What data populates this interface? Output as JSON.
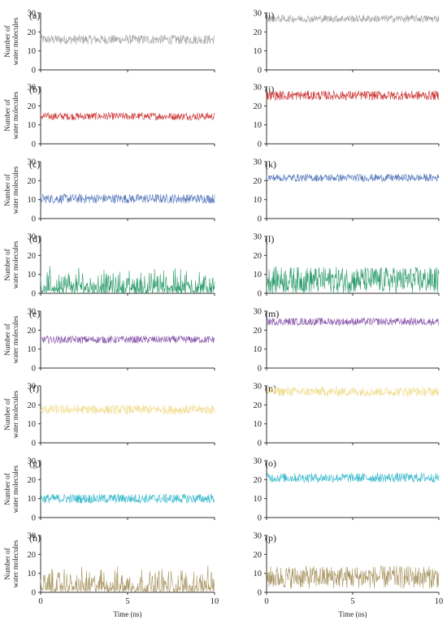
{
  "figure": {
    "y_axis_label": [
      "Number of",
      "water molecules"
    ],
    "x_axis_label": "Time (ns)"
  },
  "chart_data": [
    {
      "panel": "(a)",
      "type": "line",
      "color": "#a0a0a0",
      "xlim": [
        0,
        10
      ],
      "ylim": [
        0,
        30
      ],
      "xticks": [
        "0",
        "5",
        "10"
      ],
      "yticks": [
        "0",
        "10",
        "20",
        "30"
      ],
      "mean": 16,
      "fluctuation": 2.5
    },
    {
      "panel": "(b)",
      "type": "line",
      "color": "#cc3333",
      "xlim": [
        0,
        10
      ],
      "ylim": [
        0,
        30
      ],
      "xticks": [
        "0",
        "5",
        "10"
      ],
      "yticks": [
        "0",
        "10",
        "20",
        "30"
      ],
      "mean": 14.5,
      "fluctuation": 2
    },
    {
      "panel": "(c)",
      "type": "line",
      "color": "#5577bb",
      "xlim": [
        0,
        10
      ],
      "ylim": [
        0,
        30
      ],
      "xticks": [
        "0",
        "5",
        "10"
      ],
      "yticks": [
        "0",
        "10",
        "20",
        "30"
      ],
      "mean": 10.5,
      "fluctuation": 2.5
    },
    {
      "panel": "(d)",
      "type": "line",
      "color": "#2a9a6a",
      "xlim": [
        0,
        10
      ],
      "ylim": [
        0,
        30
      ],
      "xticks": [
        "0",
        "5",
        "10"
      ],
      "yticks": [
        "0",
        "10",
        "20",
        "30"
      ],
      "mean": 2.5,
      "fluctuation": 5
    },
    {
      "panel": "(e)",
      "type": "line",
      "color": "#8855aa",
      "xlim": [
        0,
        10
      ],
      "ylim": [
        0,
        30
      ],
      "xticks": [
        "0",
        "5",
        "10"
      ],
      "yticks": [
        "0",
        "10",
        "20",
        "30"
      ],
      "mean": 15,
      "fluctuation": 2
    },
    {
      "panel": "(f)",
      "type": "line",
      "color": "#f0dc8c",
      "xlim": [
        0,
        10
      ],
      "ylim": [
        0,
        30
      ],
      "xticks": [
        "0",
        "5",
        "10"
      ],
      "yticks": [
        "0",
        "10",
        "20",
        "30"
      ],
      "mean": 17.5,
      "fluctuation": 2.5
    },
    {
      "panel": "(g)",
      "type": "line",
      "color": "#33b8cc",
      "xlim": [
        0,
        10
      ],
      "ylim": [
        0,
        30
      ],
      "xticks": [
        "0",
        "5",
        "10"
      ],
      "yticks": [
        "0",
        "10",
        "20",
        "30"
      ],
      "mean": 10,
      "fluctuation": 2.5
    },
    {
      "panel": "(h)",
      "type": "line",
      "color": "#a89460",
      "xlim": [
        0,
        10
      ],
      "ylim": [
        0,
        30
      ],
      "xticks": [
        "0",
        "5",
        "10"
      ],
      "yticks": [
        "0",
        "10",
        "20",
        "30"
      ],
      "mean": 2.5,
      "fluctuation": 5
    },
    {
      "panel": "(i)",
      "type": "line",
      "color": "#a0a0a0",
      "xlim": [
        0,
        10
      ],
      "ylim": [
        0,
        30
      ],
      "xticks": [
        "0",
        "5",
        "10"
      ],
      "yticks": [
        "0",
        "10",
        "20",
        "30"
      ],
      "mean": 27,
      "fluctuation": 2
    },
    {
      "panel": "(j)",
      "type": "line",
      "color": "#cc3333",
      "xlim": [
        0,
        10
      ],
      "ylim": [
        0,
        30
      ],
      "xticks": [
        "0",
        "5",
        "10"
      ],
      "yticks": [
        "0",
        "10",
        "20",
        "30"
      ],
      "mean": 25.5,
      "fluctuation": 2.5
    },
    {
      "panel": "(k)",
      "type": "line",
      "color": "#5577bb",
      "xlim": [
        0,
        10
      ],
      "ylim": [
        0,
        30
      ],
      "xticks": [
        "0",
        "5",
        "10"
      ],
      "yticks": [
        "0",
        "10",
        "20",
        "30"
      ],
      "mean": 21.5,
      "fluctuation": 2
    },
    {
      "panel": "(l)",
      "type": "line",
      "color": "#2a9a6a",
      "xlim": [
        0,
        10
      ],
      "ylim": [
        0,
        30
      ],
      "xticks": [
        "0",
        "5",
        "10"
      ],
      "yticks": [
        "0",
        "10",
        "20",
        "30"
      ],
      "mean": 7,
      "fluctuation": 7
    },
    {
      "panel": "(m)",
      "type": "line",
      "color": "#8855aa",
      "xlim": [
        0,
        10
      ],
      "ylim": [
        0,
        30
      ],
      "xticks": [
        "0",
        "5",
        "10"
      ],
      "yticks": [
        "0",
        "10",
        "20",
        "30"
      ],
      "mean": 24.5,
      "fluctuation": 2
    },
    {
      "panel": "(n)",
      "type": "line",
      "color": "#f0dc8c",
      "xlim": [
        0,
        10
      ],
      "ylim": [
        0,
        30
      ],
      "xticks": [
        "0",
        "5",
        "10"
      ],
      "yticks": [
        "0",
        "10",
        "20",
        "30"
      ],
      "mean": 27,
      "fluctuation": 2.5
    },
    {
      "panel": "(o)",
      "type": "line",
      "color": "#33b8cc",
      "xlim": [
        0,
        10
      ],
      "ylim": [
        0,
        30
      ],
      "xticks": [
        "0",
        "5",
        "10"
      ],
      "yticks": [
        "0",
        "10",
        "20",
        "30"
      ],
      "mean": 21,
      "fluctuation": 2.5
    },
    {
      "panel": "(p)",
      "type": "line",
      "color": "#a89460",
      "xlim": [
        0,
        10
      ],
      "ylim": [
        0,
        30
      ],
      "xticks": [
        "0",
        "5",
        "10"
      ],
      "yticks": [
        "0",
        "10",
        "20",
        "30"
      ],
      "mean": 8,
      "fluctuation": 6
    }
  ]
}
